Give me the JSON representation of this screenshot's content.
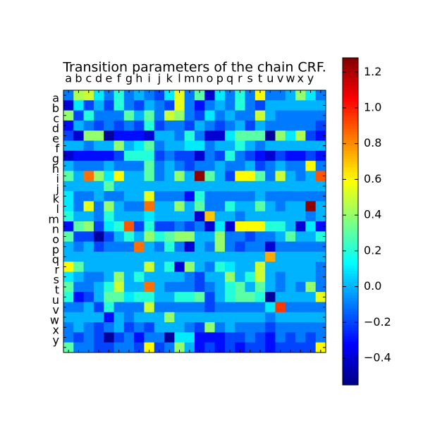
{
  "chart_data": {
    "type": "heatmap",
    "title": "Transition parameters of the chain CRF.",
    "categories": [
      "a",
      "b",
      "c",
      "d",
      "e",
      "f",
      "g",
      "h",
      "i",
      "j",
      "k",
      "l",
      "m",
      "n",
      "o",
      "p",
      "q",
      "r",
      "s",
      "t",
      "u",
      "v",
      "w",
      "x",
      "y",
      null
    ],
    "colormap": "jet",
    "clim": [
      -0.55,
      1.28
    ],
    "cticks": [
      {
        "value": -0.4,
        "label": "−0.4"
      },
      {
        "value": -0.2,
        "label": "−0.2"
      },
      {
        "value": 0.0,
        "label": "0.0"
      },
      {
        "value": 0.2,
        "label": "0.2"
      },
      {
        "value": 0.4,
        "label": "0.4"
      },
      {
        "value": 0.6,
        "label": "0.6"
      },
      {
        "value": 0.8,
        "label": "0.8"
      },
      {
        "value": 1.0,
        "label": "1.0"
      },
      {
        "value": 1.2,
        "label": "1.2"
      }
    ],
    "z": [
      [
        -0.1,
        0.45,
        0.5,
        0.1,
        -0.1,
        0.2,
        -0.1,
        0.0,
        -0.1,
        -0.2,
        0.1,
        0.55,
        -0.1,
        0.3,
        -0.4,
        0.1,
        -0.1,
        0.2,
        -0.1,
        0.6,
        -0.1,
        -0.1,
        0.0,
        0.4,
        0.1,
        -0.1
      ],
      [
        -0.4,
        0.1,
        -0.2,
        0.0,
        -0.2,
        0.2,
        -0.1,
        -0.2,
        0.0,
        -0.1,
        -0.2,
        0.55,
        -0.1,
        -0.3,
        -0.1,
        0.0,
        -0.1,
        0.2,
        -0.1,
        -0.2,
        0.0,
        0.0,
        0.0,
        0.0,
        0.0,
        0.0
      ],
      [
        0.4,
        -0.2,
        0.2,
        -0.1,
        -0.1,
        -0.1,
        0.3,
        0.0,
        0.3,
        -0.1,
        0.5,
        0.4,
        -0.1,
        -0.2,
        0.1,
        -0.1,
        0.0,
        -0.1,
        -0.1,
        0.5,
        0.0,
        -0.1,
        -0.1,
        -0.1,
        -0.1,
        -0.1
      ],
      [
        -0.3,
        0.0,
        -0.1,
        -0.2,
        -0.1,
        -0.2,
        -0.1,
        -0.2,
        0.2,
        -0.2,
        -0.1,
        -0.1,
        -0.2,
        0.0,
        -0.1,
        -0.2,
        -0.1,
        0.0,
        -0.2,
        0.0,
        -0.1,
        -0.1,
        -0.1,
        -0.1,
        -0.1,
        -0.2
      ],
      [
        -0.2,
        -0.4,
        0.4,
        0.4,
        -0.5,
        -0.3,
        -0.3,
        -0.3,
        -0.4,
        0.0,
        0.0,
        -0.1,
        0.2,
        -0.1,
        -0.4,
        -0.4,
        0.1,
        0.3,
        0.3,
        0.3,
        -0.5,
        0.4,
        0.1,
        0.45,
        -0.2,
        -0.3
      ],
      [
        0.0,
        0.0,
        -0.1,
        0.0,
        0.0,
        0.4,
        0.0,
        0.1,
        0.3,
        -0.1,
        0.0,
        0.0,
        0.1,
        0.1,
        -0.1,
        0.0,
        0.0,
        0.2,
        0.0,
        -0.1,
        0.0,
        0.0,
        0.0,
        0.0,
        0.0,
        0.0
      ],
      [
        -0.4,
        -0.3,
        -0.3,
        -0.3,
        -0.3,
        -0.2,
        0.2,
        0.2,
        0.2,
        -0.2,
        -0.1,
        -0.2,
        -0.2,
        -0.4,
        -0.1,
        -0.2,
        0.2,
        -0.1,
        -0.2,
        -0.3,
        -0.4,
        -0.2,
        -0.3,
        -0.3,
        -0.2,
        -0.3
      ],
      [
        0.0,
        -0.1,
        -0.1,
        -0.1,
        0.0,
        -0.1,
        -0.1,
        -0.1,
        0.3,
        -0.1,
        0.0,
        -0.1,
        -0.2,
        -0.1,
        -0.1,
        0.0,
        -0.1,
        -0.1,
        0.0,
        -0.2,
        -0.1,
        0.0,
        -0.1,
        -0.1,
        0.6,
        -0.1
      ],
      [
        0.3,
        0.0,
        0.85,
        0.4,
        0.1,
        0.6,
        0.0,
        0.0,
        0.3,
        -0.1,
        0.0,
        0.4,
        0.0,
        1.25,
        0.3,
        0.0,
        -0.2,
        0.6,
        0.6,
        0.3,
        -0.1,
        0.5,
        0.0,
        -0.1,
        0.0,
        0.9
      ],
      [
        0.0,
        0.0,
        0.0,
        0.0,
        0.3,
        0.0,
        0.0,
        0.0,
        0.0,
        0.0,
        0.0,
        0.0,
        0.0,
        0.0,
        0.0,
        0.0,
        0.0,
        0.0,
        0.0,
        0.0,
        0.0,
        0.0,
        0.0,
        0.0,
        0.0,
        0.0
      ],
      [
        0.1,
        -0.1,
        -0.1,
        0.0,
        -0.1,
        -0.1,
        0.0,
        0.0,
        0.55,
        -0.1,
        -0.1,
        -0.1,
        -0.3,
        0.2,
        -0.1,
        -0.1,
        -0.1,
        -0.1,
        -0.1,
        0.0,
        -0.1,
        -0.1,
        -0.1,
        -0.1,
        -0.1,
        -0.1
      ],
      [
        0.1,
        -0.1,
        0.55,
        -0.1,
        0.4,
        0.0,
        -0.1,
        -0.1,
        0.85,
        0.0,
        0.0,
        0.4,
        0.0,
        0.3,
        -0.1,
        -0.1,
        0.2,
        0.0,
        0.0,
        0.3,
        0.0,
        -0.1,
        0.0,
        0.0,
        1.25,
        0.0
      ],
      [
        0.2,
        0.0,
        0.0,
        -0.1,
        0.2,
        0.0,
        0.0,
        0.0,
        0.1,
        0.0,
        0.0,
        0.0,
        0.0,
        -0.4,
        0.7,
        0.0,
        0.0,
        -0.1,
        0.0,
        0.0,
        0.0,
        0.0,
        0.0,
        0.0,
        -0.1,
        0.0
      ],
      [
        -0.3,
        0.3,
        0.4,
        -0.2,
        0.1,
        0.2,
        0.9,
        -0.2,
        0.2,
        -0.2,
        -0.2,
        -0.1,
        -0.2,
        -0.1,
        -0.4,
        0.1,
        -0.4,
        0.6,
        0.6,
        0.6,
        0.2,
        0.2,
        0.0,
        -0.4,
        0.1,
        -0.3
      ],
      [
        0.3,
        -0.2,
        -0.2,
        -0.5,
        -0.2,
        0.0,
        0.2,
        0.0,
        0.4,
        0.2,
        0.3,
        0.4,
        0.4,
        0.0,
        0.0,
        0.4,
        -0.1,
        -0.1,
        -0.2,
        -0.1,
        -0.1,
        0.0,
        0.3,
        0.0,
        0.0,
        0.2
      ],
      [
        0.0,
        -0.1,
        0.0,
        -0.2,
        -0.1,
        -0.1,
        -0.1,
        0.85,
        0.0,
        -0.1,
        0.2,
        -0.1,
        -0.4,
        0.0,
        -0.1,
        0.4,
        -0.1,
        -0.2,
        -0.1,
        -0.1,
        -0.4,
        -0.1,
        -0.1,
        -0.1,
        -0.1,
        -0.1
      ],
      [
        0.0,
        0.0,
        0.0,
        0.0,
        0.0,
        0.0,
        0.0,
        0.0,
        0.0,
        0.0,
        0.0,
        0.0,
        0.0,
        0.0,
        0.0,
        0.0,
        0.0,
        0.0,
        0.0,
        0.0,
        0.75,
        0.0,
        0.0,
        0.0,
        0.0,
        0.0
      ],
      [
        0.6,
        0.3,
        0.0,
        0.0,
        0.0,
        0.0,
        0.0,
        0.0,
        0.5,
        0.0,
        0.2,
        -0.4,
        0.4,
        0.0,
        -0.1,
        0.2,
        0.1,
        0.0,
        0.0,
        0.5,
        0.0,
        0.0,
        0.0,
        0.0,
        0.0,
        -0.1
      ],
      [
        0.1,
        0.0,
        -0.1,
        -0.1,
        0.0,
        0.4,
        0.0,
        0.2,
        0.0,
        0.0,
        0.0,
        0.0,
        -0.1,
        -0.2,
        0.0,
        0.0,
        0.4,
        0.0,
        0.2,
        0.5,
        0.0,
        -0.1,
        0.0,
        0.0,
        0.0,
        -0.1
      ],
      [
        0.3,
        -0.1,
        -0.1,
        0.0,
        0.2,
        0.5,
        0.0,
        0.0,
        0.85,
        0.0,
        -0.1,
        -0.1,
        -0.1,
        -0.2,
        -0.1,
        0.0,
        0.2,
        0.3,
        0.0,
        0.3,
        0.0,
        -0.1,
        0.0,
        -0.1,
        0.4,
        -0.1
      ],
      [
        0.2,
        -0.3,
        -0.2,
        0.0,
        0.3,
        0.3,
        0.1,
        0.2,
        0.2,
        0.0,
        0.0,
        0.2,
        0.2,
        0.3,
        -0.2,
        0.0,
        0.2,
        0.3,
        0.3,
        0.2,
        -0.5,
        0.0,
        0.0,
        0.0,
        0.0,
        0.55
      ],
      [
        -0.1,
        -0.1,
        0.0,
        -0.2,
        0.2,
        -0.1,
        -0.1,
        -0.1,
        0.5,
        -0.1,
        -0.1,
        -0.1,
        -0.1,
        -0.1,
        -0.2,
        -0.1,
        -0.1,
        -0.1,
        -0.1,
        -0.1,
        0.1,
        0.95,
        -0.1,
        -0.1,
        -0.1,
        -0.1
      ],
      [
        0.0,
        0.0,
        0.0,
        0.0,
        -0.3,
        0.0,
        -0.1,
        0.0,
        0.0,
        0.0,
        0.4,
        0.0,
        0.0,
        0.0,
        0.0,
        0.0,
        0.0,
        0.0,
        0.0,
        0.0,
        -0.1,
        0.0,
        0.0,
        0.0,
        0.0,
        0.0
      ],
      [
        -0.1,
        0.0,
        -0.1,
        -0.2,
        -0.1,
        0.0,
        -0.2,
        -0.1,
        -0.2,
        0.0,
        0.0,
        0.0,
        -0.1,
        -0.2,
        0.4,
        -0.1,
        0.0,
        -0.1,
        -0.1,
        -0.1,
        -0.2,
        -0.1,
        -0.1,
        -0.1,
        -0.1,
        -0.1
      ],
      [
        -0.1,
        -0.2,
        -0.1,
        -0.2,
        -0.5,
        -0.2,
        -0.1,
        -0.3,
        -0.1,
        -0.1,
        -0.5,
        0.1,
        0.1,
        -0.3,
        -0.3,
        -0.3,
        -0.2,
        -0.2,
        -0.1,
        -0.2,
        -0.3,
        -0.1,
        -0.2,
        -0.1,
        -0.2,
        -0.1
      ],
      [
        0.3,
        -0.1,
        -0.1,
        -0.2,
        -0.2,
        -0.1,
        -0.1,
        -0.2,
        0.6,
        -0.2,
        -0.1,
        0.4,
        0.0,
        -0.3,
        -0.2,
        -0.3,
        -0.2,
        -0.3,
        -0.2,
        -0.2,
        -0.3,
        -0.2,
        -0.2,
        -0.2,
        -0.2,
        0.6
      ]
    ]
  }
}
